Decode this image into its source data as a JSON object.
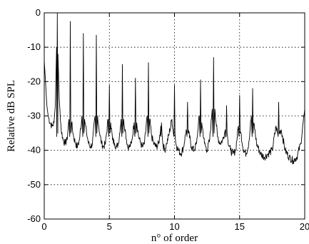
{
  "chart_data": {
    "type": "line",
    "title": "",
    "xlabel": "n° of order",
    "ylabel": "Relative dB SPL",
    "xlim": [
      0,
      20
    ],
    "ylim": [
      -60,
      0
    ],
    "xticks": [
      0,
      5,
      10,
      15,
      20
    ],
    "yticks": [
      0,
      -10,
      -20,
      -30,
      -40,
      -50,
      -60
    ],
    "xtick_labels": [
      "0",
      "5",
      "10",
      "15",
      "20"
    ],
    "ytick_labels": [
      "0",
      "-10",
      "-20",
      "-30",
      "-40",
      "-50",
      "-60"
    ],
    "grid": true,
    "series": [
      {
        "values": {
          "baseline": [
            [
              0.0,
              -14
            ],
            [
              0.1,
              -20
            ],
            [
              0.2,
              -27
            ],
            [
              0.3,
              -30
            ],
            [
              0.45,
              -32
            ],
            [
              0.6,
              -33
            ],
            [
              0.75,
              -32
            ],
            [
              0.85,
              -27
            ],
            [
              0.95,
              -10
            ],
            [
              1.0,
              0
            ],
            [
              1.05,
              -12
            ],
            [
              1.15,
              -25
            ],
            [
              1.3,
              -34
            ],
            [
              1.45,
              -37
            ],
            [
              1.6,
              -38
            ],
            [
              1.75,
              -37
            ],
            [
              1.9,
              -31
            ],
            [
              2.1,
              -32
            ],
            [
              2.25,
              -36
            ],
            [
              2.4,
              -38
            ],
            [
              2.55,
              -39
            ],
            [
              2.7,
              -37
            ],
            [
              2.9,
              -30
            ],
            [
              3.1,
              -31
            ],
            [
              3.25,
              -35
            ],
            [
              3.4,
              -38
            ],
            [
              3.55,
              -39
            ],
            [
              3.7,
              -38
            ],
            [
              3.9,
              -30
            ],
            [
              4.1,
              -30
            ],
            [
              4.25,
              -35
            ],
            [
              4.4,
              -38
            ],
            [
              4.55,
              -39
            ],
            [
              4.7,
              -38
            ],
            [
              4.9,
              -31
            ],
            [
              5.1,
              -32
            ],
            [
              5.25,
              -37
            ],
            [
              5.4,
              -38
            ],
            [
              5.55,
              -39
            ],
            [
              5.7,
              -38
            ],
            [
              5.9,
              -31
            ],
            [
              6.1,
              -31
            ],
            [
              6.25,
              -35
            ],
            [
              6.4,
              -39
            ],
            [
              6.55,
              -39
            ],
            [
              6.7,
              -38
            ],
            [
              6.9,
              -32
            ],
            [
              7.1,
              -32
            ],
            [
              7.25,
              -36
            ],
            [
              7.4,
              -38
            ],
            [
              7.55,
              -39
            ],
            [
              7.7,
              -38
            ],
            [
              7.9,
              -30
            ],
            [
              8.1,
              -31
            ],
            [
              8.25,
              -36
            ],
            [
              8.4,
              -38
            ],
            [
              8.6,
              -39
            ],
            [
              8.8,
              -38
            ],
            [
              8.95,
              -33
            ],
            [
              9.1,
              -38
            ],
            [
              9.25,
              -40
            ],
            [
              9.4,
              -38
            ],
            [
              9.6,
              -35
            ],
            [
              9.8,
              -31
            ],
            [
              10.1,
              -38
            ],
            [
              10.3,
              -40
            ],
            [
              10.5,
              -41
            ],
            [
              10.7,
              -39
            ],
            [
              10.9,
              -34
            ],
            [
              11.1,
              -35
            ],
            [
              11.3,
              -39
            ],
            [
              11.5,
              -40
            ],
            [
              11.7,
              -38
            ],
            [
              11.9,
              -30
            ],
            [
              12.1,
              -32
            ],
            [
              12.3,
              -38
            ],
            [
              12.5,
              -40
            ],
            [
              12.7,
              -37
            ],
            [
              12.9,
              -28
            ],
            [
              13.1,
              -28
            ],
            [
              13.3,
              -36
            ],
            [
              13.5,
              -38
            ],
            [
              13.7,
              -37
            ],
            [
              13.9,
              -34
            ],
            [
              14.1,
              -37
            ],
            [
              14.3,
              -40
            ],
            [
              14.5,
              -41
            ],
            [
              14.7,
              -40
            ],
            [
              14.9,
              -33
            ],
            [
              15.1,
              -35
            ],
            [
              15.3,
              -40
            ],
            [
              15.5,
              -41
            ],
            [
              15.7,
              -38
            ],
            [
              15.9,
              -30
            ],
            [
              16.1,
              -32
            ],
            [
              16.3,
              -38
            ],
            [
              16.6,
              -41
            ],
            [
              16.9,
              -42
            ],
            [
              17.2,
              -41
            ],
            [
              17.5,
              -40
            ],
            [
              17.8,
              -33
            ],
            [
              18.2,
              -34
            ],
            [
              18.5,
              -40
            ],
            [
              18.8,
              -42
            ],
            [
              19.1,
              -43
            ],
            [
              19.4,
              -42
            ],
            [
              19.7,
              -38
            ],
            [
              20.0,
              -28
            ]
          ],
          "peaks": [
            [
              1.0,
              0
            ],
            [
              2.0,
              -2.5
            ],
            [
              3.0,
              -6
            ],
            [
              4.0,
              -6.5
            ],
            [
              5.0,
              -21
            ],
            [
              6.0,
              -15
            ],
            [
              7.0,
              -19
            ],
            [
              8.0,
              -14.5
            ],
            [
              9.0,
              -32
            ],
            [
              10.0,
              -21
            ],
            [
              11.0,
              -26
            ],
            [
              12.0,
              -19.5
            ],
            [
              13.0,
              -13
            ],
            [
              14.0,
              -27
            ],
            [
              15.0,
              -24
            ],
            [
              16.0,
              -22
            ],
            [
              18.0,
              -26
            ]
          ]
        }
      }
    ]
  }
}
